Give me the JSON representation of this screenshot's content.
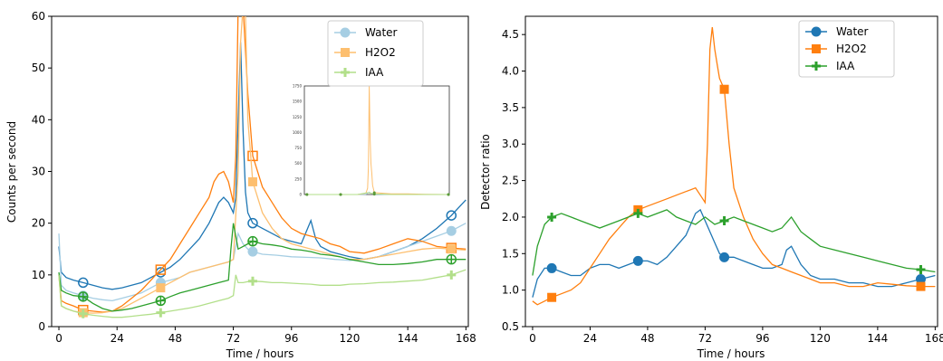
{
  "chart_data": [
    {
      "type": "line",
      "xlabel": "Time / hours",
      "ylabel": "Counts per second",
      "xlim": [
        -3,
        169
      ],
      "ylim": [
        0,
        60
      ],
      "xticks": [
        0,
        24,
        48,
        72,
        96,
        120,
        144,
        168
      ],
      "yticks": [
        0,
        10,
        20,
        30,
        40,
        50,
        60
      ],
      "legend_position": "top-right",
      "series": [
        {
          "name": "Water",
          "color": "#1f77b4",
          "marker": "open-circle",
          "x": [
            0,
            1,
            3,
            6,
            10,
            14,
            18,
            22,
            26,
            30,
            34,
            38,
            42,
            46,
            50,
            54,
            58,
            62,
            64,
            66,
            68,
            70,
            72,
            73,
            74,
            75,
            76,
            77,
            78,
            80,
            84,
            88,
            92,
            96,
            100,
            104,
            106,
            108,
            112,
            116,
            120,
            126,
            132,
            138,
            144,
            150,
            156,
            162,
            168
          ],
          "y": [
            15.5,
            10.5,
            9.5,
            9,
            8.5,
            8,
            7.5,
            7.2,
            7.5,
            8,
            8.5,
            9.5,
            10.5,
            11.5,
            13,
            15,
            17,
            20,
            22,
            24,
            25,
            24,
            22,
            25,
            40,
            55,
            38,
            26,
            22,
            20,
            19,
            18,
            17,
            16.5,
            16,
            20.5,
            17,
            15.5,
            14.5,
            14,
            13.5,
            13,
            13.5,
            14.5,
            15.5,
            17,
            19,
            21.5,
            24.5
          ]
        },
        {
          "name": "Water",
          "color": "#a6cee3",
          "marker": "filled-circle",
          "x": [
            0,
            1,
            3,
            6,
            10,
            14,
            18,
            22,
            26,
            30,
            34,
            38,
            42,
            46,
            50,
            54,
            58,
            62,
            66,
            70,
            72,
            74,
            76,
            78,
            80,
            84,
            90,
            96,
            102,
            108,
            114,
            120,
            126,
            132,
            138,
            144,
            150,
            156,
            162,
            168
          ],
          "y": [
            18,
            8,
            7,
            6.5,
            6,
            5.5,
            5.2,
            5,
            5.5,
            6,
            6.5,
            7.5,
            8.5,
            9,
            9.5,
            10.5,
            11,
            11.5,
            12,
            12.5,
            13,
            18,
            16,
            15,
            14.5,
            14,
            13.8,
            13.5,
            13.4,
            13.3,
            13,
            12.8,
            13,
            13.5,
            14.5,
            15.5,
            16.5,
            17.5,
            18.5,
            20
          ]
        },
        {
          "name": "H2O2",
          "color": "#ff7f0e",
          "marker": "open-square",
          "x": [
            0,
            1,
            3,
            6,
            10,
            14,
            18,
            22,
            26,
            30,
            34,
            38,
            42,
            46,
            50,
            54,
            58,
            62,
            64,
            66,
            68,
            70,
            72,
            73,
            74,
            75,
            76,
            78,
            80,
            84,
            88,
            92,
            96,
            100,
            104,
            108,
            112,
            116,
            120,
            126,
            132,
            138,
            144,
            150,
            156,
            162,
            168
          ],
          "y": [
            10,
            5,
            4.5,
            4,
            3.2,
            3,
            2.8,
            3,
            4,
            5.5,
            7,
            9,
            11,
            13,
            16,
            19,
            22,
            25,
            28,
            29.5,
            30,
            28,
            24,
            33,
            62,
            65,
            62,
            45,
            33,
            27,
            24,
            21,
            19,
            18,
            17.5,
            17,
            16,
            15.5,
            14.5,
            14.2,
            15,
            16,
            17,
            16.5,
            15.5,
            15.2,
            15
          ]
        },
        {
          "name": "H2O2",
          "color": "#fdbf6f",
          "marker": "filled-square",
          "x": [
            0,
            1,
            3,
            6,
            10,
            14,
            18,
            22,
            26,
            30,
            34,
            38,
            42,
            46,
            50,
            54,
            58,
            62,
            66,
            70,
            72,
            74,
            75,
            76,
            77,
            78,
            80,
            84,
            88,
            92,
            96,
            100,
            104,
            108,
            112,
            116,
            120,
            126,
            132,
            138,
            144,
            150,
            156,
            162,
            168
          ],
          "y": [
            10,
            4,
            3.5,
            3,
            2.7,
            2.6,
            2.7,
            3,
            3.5,
            4.5,
            5.5,
            6.5,
            7.5,
            8.5,
            9.5,
            10.5,
            11,
            11.5,
            12,
            12.5,
            13,
            30,
            55,
            62,
            60,
            40,
            28,
            22,
            19,
            17,
            16,
            15.5,
            15,
            14.5,
            14,
            13.5,
            13,
            13,
            13.5,
            14,
            14.5,
            15,
            15.2,
            15,
            14.8
          ]
        },
        {
          "name": "IAA",
          "color": "#2ca02c",
          "marker": "open-plus",
          "x": [
            0,
            1,
            3,
            6,
            10,
            14,
            18,
            22,
            26,
            30,
            34,
            38,
            42,
            46,
            50,
            54,
            58,
            62,
            66,
            70,
            71,
            72,
            74,
            76,
            78,
            80,
            84,
            88,
            92,
            96,
            100,
            104,
            108,
            112,
            116,
            120,
            126,
            132,
            138,
            144,
            150,
            156,
            162,
            168
          ],
          "y": [
            10.5,
            7,
            6.5,
            6,
            5.8,
            4.5,
            3.5,
            3,
            3.2,
            3.5,
            4,
            4.5,
            5,
            5.8,
            6.5,
            7,
            7.5,
            8,
            8.5,
            9,
            15,
            20,
            15,
            15.5,
            16,
            16.5,
            16,
            15.8,
            15.5,
            15,
            14.8,
            14.5,
            14,
            13.8,
            13.5,
            13,
            12.5,
            12,
            12,
            12.2,
            12.5,
            13,
            13,
            13
          ]
        },
        {
          "name": "IAA",
          "color": "#b2df8a",
          "marker": "filled-plus",
          "x": [
            0,
            1,
            3,
            6,
            10,
            14,
            18,
            22,
            26,
            30,
            34,
            38,
            42,
            46,
            50,
            54,
            58,
            62,
            66,
            70,
            72,
            73,
            74,
            76,
            78,
            80,
            84,
            88,
            92,
            96,
            100,
            104,
            108,
            112,
            116,
            120,
            126,
            132,
            138,
            144,
            150,
            156,
            162,
            168
          ],
          "y": [
            10,
            4,
            3.5,
            3,
            2.5,
            2.2,
            2,
            1.8,
            1.8,
            2,
            2.2,
            2.4,
            2.7,
            3,
            3.3,
            3.6,
            4,
            4.5,
            5,
            5.5,
            6,
            10,
            8.5,
            8.5,
            8.7,
            8.8,
            8.7,
            8.5,
            8.5,
            8.4,
            8.3,
            8.2,
            8,
            8,
            8,
            8.2,
            8.3,
            8.5,
            8.6,
            8.8,
            9,
            9.5,
            10,
            11
          ]
        }
      ],
      "inset": {
        "ylim": [
          0,
          1750
        ],
        "xlim": [
          -3,
          169
        ],
        "yticks": [
          0,
          250,
          500,
          750,
          1000,
          1250,
          1500,
          1750
        ],
        "series": [
          {
            "name": "Water",
            "color": "#a6cee3",
            "x": [
              0,
              20,
              40,
              60,
              70,
              74,
              76,
              80,
              100,
              120,
              140,
              168
            ],
            "y": [
              0,
              0,
              0,
              0,
              5,
              40,
              20,
              5,
              0,
              0,
              0,
              0
            ]
          },
          {
            "name": "H2O2",
            "color": "#fdbf6f",
            "x": [
              0,
              20,
              40,
              60,
              70,
              72,
              73,
              74,
              75,
              76,
              77,
              78,
              80,
              100,
              120,
              140,
              168
            ],
            "y": [
              0,
              0,
              0,
              0,
              20,
              100,
              450,
              1750,
              900,
              500,
              350,
              150,
              30,
              10,
              10,
              5,
              0
            ]
          },
          {
            "name": "IAA",
            "color": "#b2df8a",
            "x": [
              0,
              20,
              40,
              60,
              72,
              80,
              100,
              120,
              140,
              168
            ],
            "y": [
              0,
              0,
              0,
              0,
              30,
              10,
              0,
              0,
              0,
              0
            ]
          }
        ]
      }
    },
    {
      "type": "line",
      "xlabel": "Time / hours",
      "ylabel": "Detector ratio",
      "xlim": [
        -3,
        169
      ],
      "ylim": [
        0.5,
        4.75
      ],
      "xticks": [
        0,
        24,
        48,
        72,
        96,
        120,
        144,
        168
      ],
      "yticks": [
        0.5,
        1.0,
        1.5,
        2.0,
        2.5,
        3.0,
        3.5,
        4.0,
        4.5
      ],
      "legend_position": "top-right",
      "series": [
        {
          "name": "Water",
          "color": "#1f77b4",
          "marker": "circle",
          "x": [
            0,
            2,
            5,
            8,
            12,
            16,
            20,
            24,
            28,
            32,
            36,
            40,
            44,
            48,
            52,
            56,
            60,
            64,
            66,
            68,
            70,
            72,
            74,
            76,
            78,
            80,
            84,
            88,
            92,
            96,
            100,
            104,
            106,
            108,
            112,
            116,
            120,
            126,
            132,
            138,
            144,
            150,
            156,
            162,
            168
          ],
          "y": [
            0.9,
            1.15,
            1.3,
            1.3,
            1.25,
            1.2,
            1.2,
            1.3,
            1.35,
            1.35,
            1.3,
            1.35,
            1.4,
            1.4,
            1.35,
            1.45,
            1.6,
            1.75,
            1.9,
            2.05,
            2.1,
            1.95,
            1.8,
            1.65,
            1.5,
            1.45,
            1.45,
            1.4,
            1.35,
            1.3,
            1.3,
            1.35,
            1.55,
            1.6,
            1.35,
            1.2,
            1.15,
            1.15,
            1.1,
            1.1,
            1.05,
            1.05,
            1.1,
            1.15,
            1.2
          ]
        },
        {
          "name": "H2O2",
          "color": "#ff7f0e",
          "marker": "square",
          "x": [
            0,
            2,
            5,
            8,
            12,
            16,
            20,
            24,
            28,
            32,
            36,
            40,
            44,
            48,
            52,
            56,
            60,
            64,
            68,
            70,
            72,
            73,
            74,
            75,
            76,
            77,
            78,
            80,
            82,
            84,
            88,
            92,
            96,
            100,
            104,
            108,
            112,
            116,
            120,
            126,
            132,
            138,
            144,
            150,
            156,
            162,
            168
          ],
          "y": [
            0.85,
            0.8,
            0.85,
            0.9,
            0.95,
            1.0,
            1.1,
            1.3,
            1.5,
            1.7,
            1.85,
            2.0,
            2.1,
            2.15,
            2.2,
            2.25,
            2.3,
            2.35,
            2.4,
            2.3,
            2.2,
            3.0,
            4.3,
            4.6,
            4.3,
            4.1,
            3.9,
            3.75,
            3.0,
            2.4,
            2.0,
            1.7,
            1.5,
            1.35,
            1.3,
            1.25,
            1.2,
            1.15,
            1.1,
            1.1,
            1.05,
            1.05,
            1.1,
            1.08,
            1.06,
            1.05,
            1.05
          ]
        },
        {
          "name": "IAA",
          "color": "#2ca02c",
          "marker": "plus",
          "x": [
            0,
            2,
            5,
            8,
            12,
            16,
            20,
            24,
            28,
            32,
            36,
            40,
            44,
            48,
            52,
            56,
            60,
            64,
            68,
            72,
            74,
            76,
            80,
            84,
            88,
            92,
            96,
            100,
            104,
            108,
            112,
            116,
            120,
            126,
            132,
            138,
            144,
            150,
            156,
            162,
            168
          ],
          "y": [
            1.2,
            1.6,
            1.9,
            2.0,
            2.05,
            2.0,
            1.95,
            1.9,
            1.85,
            1.9,
            1.95,
            2.0,
            2.05,
            2.0,
            2.05,
            2.1,
            2.0,
            1.95,
            1.9,
            2.0,
            1.95,
            1.9,
            1.95,
            2.0,
            1.95,
            1.9,
            1.85,
            1.8,
            1.85,
            2.0,
            1.8,
            1.7,
            1.6,
            1.55,
            1.5,
            1.45,
            1.4,
            1.35,
            1.3,
            1.28,
            1.25
          ]
        }
      ]
    }
  ]
}
